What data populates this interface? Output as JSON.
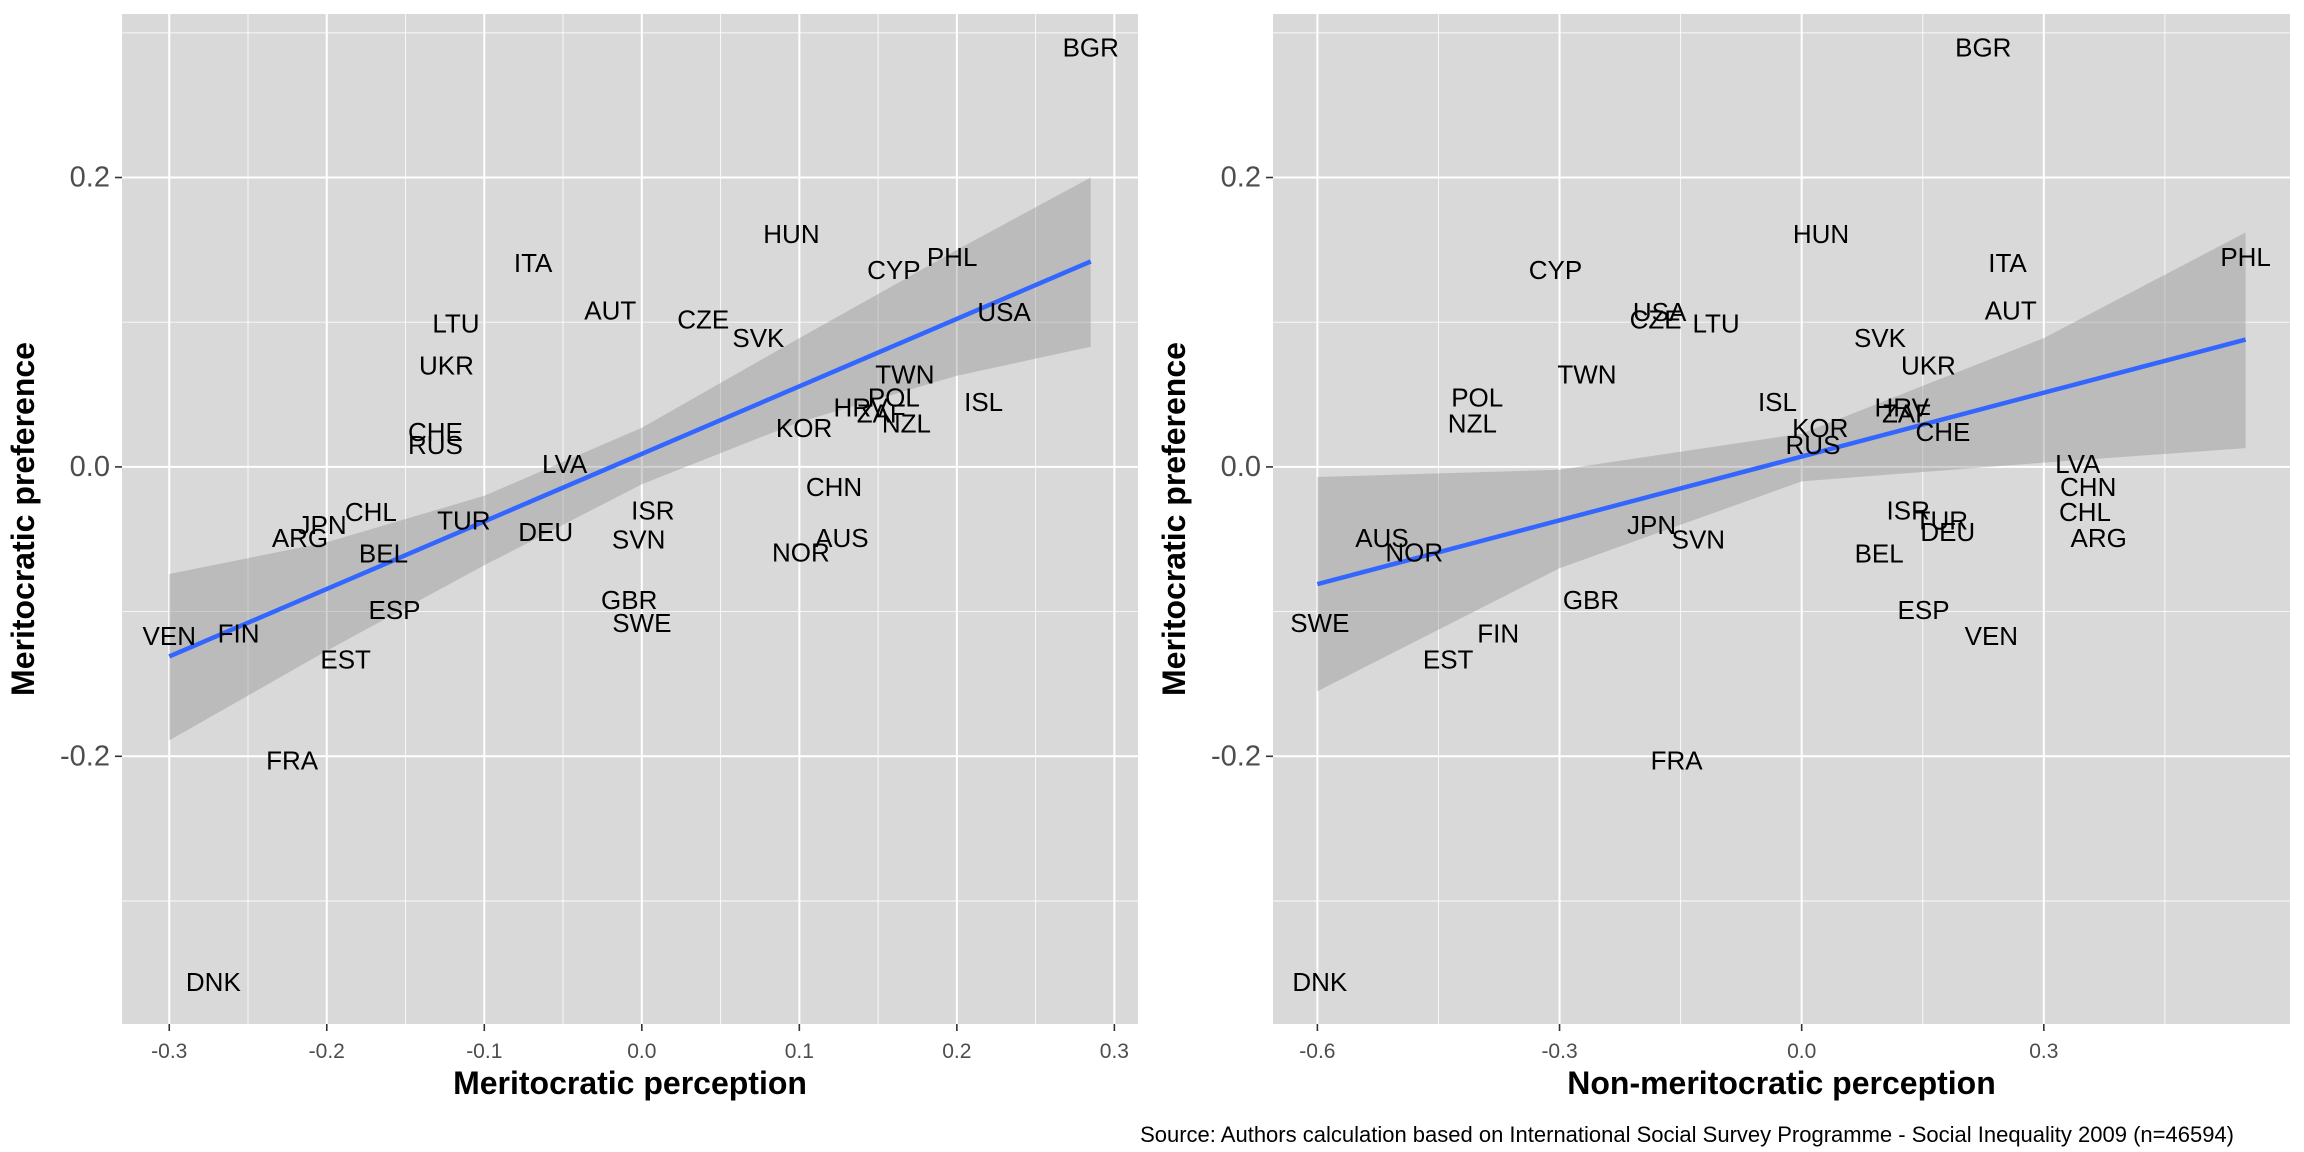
{
  "caption": "Source: Authors calculation based on International Social Survey Programme - Social Inequality 2009 (n=46594)",
  "colors": {
    "panel": "#d9d9d9",
    "grid": "#ffffff",
    "fit": "#3366ff",
    "band": "#8e8e8e"
  },
  "chart_data": [
    {
      "type": "scatter",
      "title": "",
      "xlabel": "Meritocratic perception",
      "ylabel": "Meritocratic preference",
      "xlim": [
        -0.33,
        0.315
      ],
      "ylim": [
        -0.385,
        0.313
      ],
      "xticks": [
        -0.3,
        -0.2,
        -0.1,
        0.0,
        0.1,
        0.2,
        0.3
      ],
      "xtick_labels": [
        "-0.3",
        "-0.2",
        "-0.1",
        "0.0",
        "0.1",
        "0.2",
        "0.3"
      ],
      "yticks": [
        -0.2,
        0.0,
        0.2
      ],
      "ytick_labels": [
        "-0.2",
        "0.0",
        "0.2"
      ],
      "fit_line": {
        "x": [
          -0.3,
          0.285
        ],
        "y": [
          -0.131,
          0.142
        ]
      },
      "confidence_band": [
        {
          "x": -0.3,
          "lo": -0.189,
          "hi": -0.074
        },
        {
          "x": -0.2,
          "lo": -0.127,
          "hi": -0.052
        },
        {
          "x": -0.1,
          "lo": -0.068,
          "hi": -0.02
        },
        {
          "x": 0.0,
          "lo": -0.012,
          "hi": 0.027
        },
        {
          "x": 0.1,
          "lo": 0.031,
          "hi": 0.089
        },
        {
          "x": 0.2,
          "lo": 0.063,
          "hi": 0.15
        },
        {
          "x": 0.285,
          "lo": 0.083,
          "hi": 0.2
        }
      ],
      "points": [
        {
          "label": "BGR",
          "x": 0.285,
          "y": 0.29
        },
        {
          "label": "HUN",
          "x": 0.095,
          "y": 0.161
        },
        {
          "label": "PHL",
          "x": 0.197,
          "y": 0.145
        },
        {
          "label": "CYP",
          "x": 0.16,
          "y": 0.136
        },
        {
          "label": "ITA",
          "x": -0.069,
          "y": 0.141
        },
        {
          "label": "AUT",
          "x": -0.02,
          "y": 0.108
        },
        {
          "label": "CZE",
          "x": 0.039,
          "y": 0.102
        },
        {
          "label": "USA",
          "x": 0.23,
          "y": 0.107
        },
        {
          "label": "LTU",
          "x": -0.118,
          "y": 0.099
        },
        {
          "label": "SVK",
          "x": 0.074,
          "y": 0.089
        },
        {
          "label": "UKR",
          "x": -0.124,
          "y": 0.07
        },
        {
          "label": "TWN",
          "x": 0.167,
          "y": 0.064
        },
        {
          "label": "POL",
          "x": 0.16,
          "y": 0.048
        },
        {
          "label": "HRV",
          "x": 0.139,
          "y": 0.041
        },
        {
          "label": "ISL",
          "x": 0.217,
          "y": 0.045
        },
        {
          "label": "ZAF",
          "x": 0.152,
          "y": 0.037
        },
        {
          "label": "NZL",
          "x": 0.168,
          "y": 0.03
        },
        {
          "label": "KOR",
          "x": 0.103,
          "y": 0.027
        },
        {
          "label": "CHE",
          "x": -0.131,
          "y": 0.024
        },
        {
          "label": "RUS",
          "x": -0.131,
          "y": 0.015
        },
        {
          "label": "LVA",
          "x": -0.049,
          "y": 0.002
        },
        {
          "label": "CHN",
          "x": 0.122,
          "y": -0.014
        },
        {
          "label": "ISR",
          "x": 0.007,
          "y": -0.03
        },
        {
          "label": "CHL",
          "x": -0.172,
          "y": -0.031
        },
        {
          "label": "JPN",
          "x": -0.203,
          "y": -0.04
        },
        {
          "label": "TUR",
          "x": -0.113,
          "y": -0.037
        },
        {
          "label": "DEU",
          "x": -0.061,
          "y": -0.045
        },
        {
          "label": "SVN",
          "x": -0.002,
          "y": -0.05
        },
        {
          "label": "AUS",
          "x": 0.127,
          "y": -0.049
        },
        {
          "label": "ARG",
          "x": -0.217,
          "y": -0.049
        },
        {
          "label": "BEL",
          "x": -0.164,
          "y": -0.06
        },
        {
          "label": "NOR",
          "x": 0.101,
          "y": -0.059
        },
        {
          "label": "GBR",
          "x": -0.008,
          "y": -0.092
        },
        {
          "label": "ESP",
          "x": -0.157,
          "y": -0.099
        },
        {
          "label": "SWE",
          "x": 0.0,
          "y": -0.108
        },
        {
          "label": "VEN",
          "x": -0.3,
          "y": -0.117
        },
        {
          "label": "FIN",
          "x": -0.256,
          "y": -0.115
        },
        {
          "label": "EST",
          "x": -0.188,
          "y": -0.133
        },
        {
          "label": "FRA",
          "x": -0.222,
          "y": -0.203
        },
        {
          "label": "DNK",
          "x": -0.272,
          "y": -0.356
        }
      ]
    },
    {
      "type": "scatter",
      "title": "",
      "xlabel": "Non-meritocratic perception",
      "ylabel": "Meritocratic preference",
      "xlim": [
        -0.655,
        0.605
      ],
      "ylim": [
        -0.385,
        0.313
      ],
      "xticks": [
        -0.6,
        -0.3,
        0.0,
        0.3
      ],
      "xtick_labels": [
        "-0.6",
        "-0.3",
        "0.0",
        "0.3"
      ],
      "yticks": [
        -0.2,
        0.0,
        0.2
      ],
      "ytick_labels": [
        "-0.2",
        "0.0",
        "0.2"
      ],
      "fit_line": {
        "x": [
          -0.6,
          0.55
        ],
        "y": [
          -0.081,
          0.088
        ]
      },
      "confidence_band": [
        {
          "x": -0.6,
          "lo": -0.155,
          "hi": -0.007
        },
        {
          "x": -0.3,
          "lo": -0.07,
          "hi": -0.002
        },
        {
          "x": 0.0,
          "lo": -0.01,
          "hi": 0.023
        },
        {
          "x": 0.3,
          "lo": 0.003,
          "hi": 0.089
        },
        {
          "x": 0.55,
          "lo": 0.013,
          "hi": 0.162
        }
      ],
      "points": [
        {
          "label": "BGR",
          "x": 0.225,
          "y": 0.29
        },
        {
          "label": "HUN",
          "x": 0.024,
          "y": 0.161
        },
        {
          "label": "PHL",
          "x": 0.55,
          "y": 0.145
        },
        {
          "label": "ITA",
          "x": 0.255,
          "y": 0.141
        },
        {
          "label": "CYP",
          "x": -0.305,
          "y": 0.136
        },
        {
          "label": "AUT",
          "x": 0.259,
          "y": 0.108
        },
        {
          "label": "USA",
          "x": -0.176,
          "y": 0.107
        },
        {
          "label": "CZE",
          "x": -0.181,
          "y": 0.102
        },
        {
          "label": "LTU",
          "x": -0.106,
          "y": 0.099
        },
        {
          "label": "SVK",
          "x": 0.097,
          "y": 0.089
        },
        {
          "label": "UKR",
          "x": 0.157,
          "y": 0.07
        },
        {
          "label": "TWN",
          "x": -0.266,
          "y": 0.064
        },
        {
          "label": "POL",
          "x": -0.402,
          "y": 0.048
        },
        {
          "label": "ISL",
          "x": -0.03,
          "y": 0.045
        },
        {
          "label": "HRV",
          "x": 0.124,
          "y": 0.041
        },
        {
          "label": "ZAF",
          "x": 0.13,
          "y": 0.037
        },
        {
          "label": "NZL",
          "x": -0.408,
          "y": 0.03
        },
        {
          "label": "KOR",
          "x": 0.023,
          "y": 0.027
        },
        {
          "label": "CHE",
          "x": 0.175,
          "y": 0.024
        },
        {
          "label": "RUS",
          "x": 0.014,
          "y": 0.015
        },
        {
          "label": "LVA",
          "x": 0.342,
          "y": 0.002
        },
        {
          "label": "CHN",
          "x": 0.355,
          "y": -0.014
        },
        {
          "label": "ISR",
          "x": 0.132,
          "y": -0.03
        },
        {
          "label": "CHL",
          "x": 0.351,
          "y": -0.031
        },
        {
          "label": "JPN",
          "x": -0.186,
          "y": -0.04
        },
        {
          "label": "TUR",
          "x": 0.173,
          "y": -0.037
        },
        {
          "label": "DEU",
          "x": 0.181,
          "y": -0.045
        },
        {
          "label": "SVN",
          "x": -0.128,
          "y": -0.05
        },
        {
          "label": "AUS",
          "x": -0.52,
          "y": -0.049
        },
        {
          "label": "ARG",
          "x": 0.368,
          "y": -0.049
        },
        {
          "label": "BEL",
          "x": 0.096,
          "y": -0.06
        },
        {
          "label": "NOR",
          "x": -0.48,
          "y": -0.059
        },
        {
          "label": "GBR",
          "x": -0.261,
          "y": -0.092
        },
        {
          "label": "ESP",
          "x": 0.151,
          "y": -0.099
        },
        {
          "label": "SWE",
          "x": -0.597,
          "y": -0.108
        },
        {
          "label": "VEN",
          "x": 0.235,
          "y": -0.117
        },
        {
          "label": "FIN",
          "x": -0.376,
          "y": -0.115
        },
        {
          "label": "EST",
          "x": -0.438,
          "y": -0.133
        },
        {
          "label": "FRA",
          "x": -0.155,
          "y": -0.203
        },
        {
          "label": "DNK",
          "x": -0.597,
          "y": -0.356
        }
      ]
    }
  ]
}
